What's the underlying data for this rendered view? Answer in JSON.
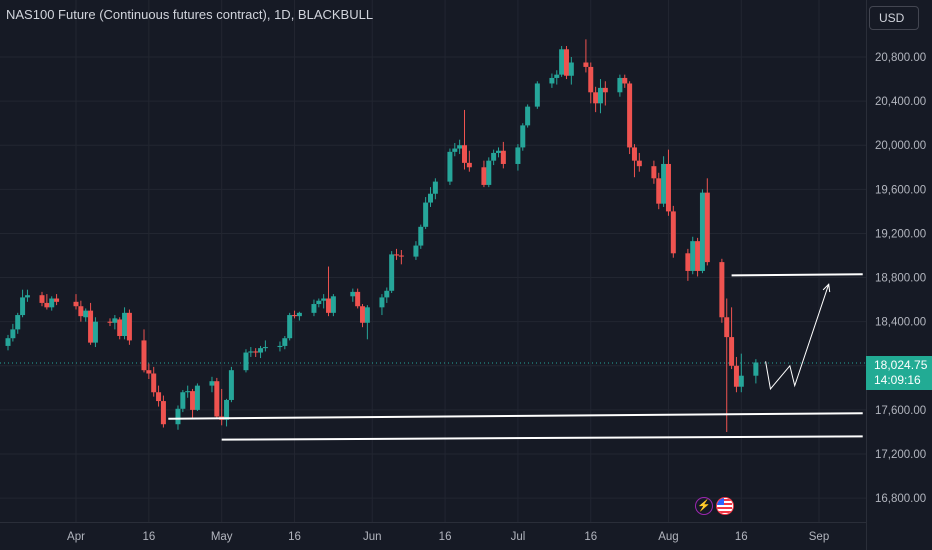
{
  "header": {
    "title": "NAS100 Future (Continuous futures contract), 1D, BLACKBULL",
    "currency": "USD"
  },
  "price_tag": {
    "price": "18,024.75",
    "countdown": "14:09:16"
  },
  "events": [
    {
      "icon": "lightning-icon",
      "glyph": "⚡",
      "color": "#9c27b0"
    },
    {
      "icon": "us-flag-icon",
      "glyph": "",
      "color": "#f23645"
    }
  ],
  "colors": {
    "up": "#26a69a",
    "down": "#ef5350",
    "background": "#161a25",
    "grid": "#222631",
    "axis_text": "#b2b5be",
    "lines": "#ffffff"
  },
  "chart_data": {
    "type": "candlestick",
    "ylim": [
      16650,
      21100
    ],
    "yticks": [
      16800,
      17200,
      17600,
      18000,
      18400,
      18800,
      19200,
      19600,
      20000,
      20400,
      20800
    ],
    "ytick_labels": [
      "16,800.00",
      "17,200.00",
      "17,600.00",
      "18,000.00",
      "18,400.00",
      "18,800.00",
      "19,200.00",
      "19,600.00",
      "20,000.00",
      "20,400.00",
      "20,800.00"
    ],
    "xtick_labels": [
      {
        "date": "2024-04-01",
        "label": "Apr"
      },
      {
        "date": "2024-04-16",
        "label": "16"
      },
      {
        "date": "2024-05-01",
        "label": "May"
      },
      {
        "date": "2024-05-16",
        "label": "16"
      },
      {
        "date": "2024-06-01",
        "label": "Jun"
      },
      {
        "date": "2024-06-16",
        "label": "16"
      },
      {
        "date": "2024-07-01",
        "label": "Jul"
      },
      {
        "date": "2024-07-16",
        "label": "16"
      },
      {
        "date": "2024-08-01",
        "label": "Aug"
      },
      {
        "date": "2024-08-16",
        "label": "16"
      },
      {
        "date": "2024-09-01",
        "label": "Sep"
      }
    ],
    "last_price": 18024.75,
    "candles": [
      [
        "2024-03-13",
        18370,
        18440,
        18280,
        18300
      ],
      [
        "2024-03-14",
        18300,
        18340,
        18040,
        18070
      ],
      [
        "2024-03-15",
        18080,
        18230,
        18040,
        18180
      ],
      [
        "2024-03-18",
        18180,
        18280,
        18140,
        18250
      ],
      [
        "2024-03-19",
        18250,
        18380,
        18220,
        18330
      ],
      [
        "2024-03-20",
        18330,
        18480,
        18290,
        18460
      ],
      [
        "2024-03-21",
        18460,
        18690,
        18440,
        18620
      ],
      [
        "2024-03-22",
        18620,
        18690,
        18580,
        18640
      ],
      [
        "2024-03-25",
        18640,
        18670,
        18540,
        18570
      ],
      [
        "2024-03-26",
        18570,
        18650,
        18510,
        18530
      ],
      [
        "2024-03-27",
        18530,
        18630,
        18500,
        18610
      ],
      [
        "2024-03-28",
        18610,
        18650,
        18550,
        18580
      ],
      [
        "2024-04-01",
        18580,
        18650,
        18510,
        18540
      ],
      [
        "2024-04-02",
        18540,
        18590,
        18400,
        18450
      ],
      [
        "2024-04-03",
        18440,
        18520,
        18400,
        18500
      ],
      [
        "2024-04-04",
        18500,
        18570,
        18190,
        18210
      ],
      [
        "2024-04-05",
        18210,
        18440,
        18170,
        18400
      ],
      [
        "2024-04-08",
        18400,
        18430,
        18360,
        18390
      ],
      [
        "2024-04-09",
        18390,
        18460,
        18330,
        18430
      ],
      [
        "2024-04-10",
        18420,
        18440,
        18240,
        18270
      ],
      [
        "2024-04-11",
        18270,
        18530,
        18240,
        18480
      ],
      [
        "2024-04-12",
        18480,
        18510,
        18190,
        18230
      ],
      [
        "2024-04-15",
        18230,
        18330,
        17940,
        17960
      ],
      [
        "2024-04-16",
        17960,
        18020,
        17880,
        17930
      ],
      [
        "2024-04-17",
        17930,
        17990,
        17720,
        17760
      ],
      [
        "2024-04-18",
        17760,
        17820,
        17630,
        17680
      ],
      [
        "2024-04-19",
        17680,
        17730,
        17440,
        17470
      ],
      [
        "2024-04-22",
        17470,
        17640,
        17420,
        17610
      ],
      [
        "2024-04-23",
        17610,
        17780,
        17580,
        17760
      ],
      [
        "2024-04-24",
        17760,
        17820,
        17710,
        17770
      ],
      [
        "2024-04-25",
        17770,
        17790,
        17520,
        17600
      ],
      [
        "2024-04-26",
        17600,
        17840,
        17590,
        17820
      ],
      [
        "2024-04-29",
        17820,
        17900,
        17760,
        17860
      ],
      [
        "2024-04-30",
        17860,
        17890,
        17520,
        17540
      ],
      [
        "2024-05-01",
        17540,
        17790,
        17460,
        17510
      ],
      [
        "2024-05-02",
        17510,
        17700,
        17450,
        17690
      ],
      [
        "2024-05-03",
        17690,
        17990,
        17670,
        17960
      ],
      [
        "2024-05-06",
        17960,
        18150,
        17940,
        18120
      ],
      [
        "2024-05-07",
        18120,
        18170,
        18080,
        18130
      ],
      [
        "2024-05-08",
        18130,
        18160,
        18080,
        18120
      ],
      [
        "2024-05-09",
        18120,
        18180,
        18070,
        18160
      ],
      [
        "2024-05-10",
        18160,
        18230,
        18130,
        18170
      ],
      [
        "2024-05-13",
        18170,
        18220,
        18130,
        18180
      ],
      [
        "2024-05-14",
        18180,
        18270,
        18150,
        18250
      ],
      [
        "2024-05-15",
        18250,
        18480,
        18230,
        18460
      ],
      [
        "2024-05-16",
        18460,
        18500,
        18430,
        18450
      ],
      [
        "2024-05-17",
        18450,
        18490,
        18410,
        18480
      ],
      [
        "2024-05-20",
        18480,
        18600,
        18450,
        18560
      ],
      [
        "2024-05-21",
        18560,
        18610,
        18530,
        18590
      ],
      [
        "2024-05-22",
        18590,
        18650,
        18520,
        18610
      ],
      [
        "2024-05-23",
        18610,
        18900,
        18450,
        18480
      ],
      [
        "2024-05-24",
        18480,
        18650,
        18450,
        18630
      ],
      [
        "2024-05-28",
        18630,
        18700,
        18580,
        18670
      ],
      [
        "2024-05-29",
        18670,
        18700,
        18520,
        18540
      ],
      [
        "2024-05-30",
        18540,
        18560,
        18350,
        18390
      ],
      [
        "2024-05-31",
        18390,
        18550,
        18240,
        18530
      ],
      [
        "2024-06-03",
        18530,
        18650,
        18460,
        18620
      ],
      [
        "2024-06-04",
        18620,
        18710,
        18570,
        18680
      ],
      [
        "2024-06-05",
        18680,
        19040,
        18660,
        19010
      ],
      [
        "2024-06-06",
        19010,
        19060,
        18960,
        19000
      ],
      [
        "2024-06-07",
        19000,
        19050,
        18920,
        18990
      ],
      [
        "2024-06-10",
        18990,
        19130,
        18960,
        19090
      ],
      [
        "2024-06-11",
        19090,
        19280,
        19060,
        19260
      ],
      [
        "2024-06-12",
        19260,
        19530,
        19240,
        19480
      ],
      [
        "2024-06-13",
        19480,
        19620,
        19440,
        19560
      ],
      [
        "2024-06-14",
        19560,
        19700,
        19510,
        19670
      ],
      [
        "2024-06-17",
        19670,
        19970,
        19640,
        19940
      ],
      [
        "2024-06-18",
        19940,
        20020,
        19900,
        19970
      ],
      [
        "2024-06-19",
        19970,
        20050,
        19920,
        20000
      ],
      [
        "2024-06-20",
        20000,
        20320,
        19780,
        19840
      ],
      [
        "2024-06-21",
        19840,
        19950,
        19760,
        19800
      ],
      [
        "2024-06-24",
        19800,
        19860,
        19620,
        19640
      ],
      [
        "2024-06-25",
        19640,
        19890,
        19620,
        19860
      ],
      [
        "2024-06-26",
        19860,
        19960,
        19820,
        19930
      ],
      [
        "2024-06-27",
        19930,
        19980,
        19890,
        19950
      ],
      [
        "2024-06-28",
        19950,
        20030,
        19790,
        19830
      ],
      [
        "2024-07-01",
        19830,
        20010,
        19770,
        19980
      ],
      [
        "2024-07-02",
        19980,
        20200,
        19950,
        20180
      ],
      [
        "2024-07-03",
        20180,
        20370,
        20160,
        20350
      ],
      [
        "2024-07-05",
        20350,
        20580,
        20330,
        20560
      ],
      [
        "2024-07-08",
        20560,
        20650,
        20520,
        20610
      ],
      [
        "2024-07-09",
        20610,
        20680,
        20550,
        20640
      ],
      [
        "2024-07-10",
        20640,
        20900,
        20620,
        20870
      ],
      [
        "2024-07-11",
        20870,
        20900,
        20600,
        20630
      ],
      [
        "2024-07-12",
        20630,
        20800,
        20550,
        20750
      ],
      [
        "2024-07-15",
        20750,
        20960,
        20660,
        20710
      ],
      [
        "2024-07-16",
        20710,
        20750,
        20380,
        20480
      ],
      [
        "2024-07-17",
        20480,
        20530,
        20300,
        20380
      ],
      [
        "2024-07-18",
        20380,
        20600,
        20290,
        20520
      ],
      [
        "2024-07-19",
        20520,
        20580,
        20360,
        20480
      ],
      [
        "2024-07-22",
        20480,
        20640,
        20440,
        20610
      ],
      [
        "2024-07-23",
        20610,
        20640,
        20520,
        20560
      ],
      [
        "2024-07-24",
        20560,
        20580,
        19920,
        19980
      ],
      [
        "2024-07-25",
        19980,
        20010,
        19710,
        19860
      ],
      [
        "2024-07-26",
        19860,
        19930,
        19760,
        19810
      ],
      [
        "2024-07-29",
        19810,
        19860,
        19650,
        19700
      ],
      [
        "2024-07-30",
        19700,
        19750,
        19420,
        19470
      ],
      [
        "2024-07-31",
        19470,
        19900,
        19440,
        19830
      ],
      [
        "2024-08-01",
        19830,
        19960,
        19360,
        19400
      ],
      [
        "2024-08-02",
        19400,
        19450,
        18980,
        19020
      ],
      [
        "2024-08-05",
        19020,
        19060,
        18770,
        18860
      ],
      [
        "2024-08-06",
        18860,
        19170,
        18830,
        19130
      ],
      [
        "2024-08-07",
        19130,
        19160,
        18810,
        18860
      ],
      [
        "2024-08-08",
        18860,
        19600,
        18840,
        19570
      ],
      [
        "2024-08-09",
        19570,
        19700,
        18910,
        18940
      ],
      [
        "2024-08-12",
        18940,
        18970,
        18390,
        18440
      ],
      [
        "2024-08-13",
        18440,
        18610,
        17400,
        18260
      ],
      [
        "2024-08-14",
        18260,
        18530,
        17970,
        18000
      ],
      [
        "2024-08-15",
        18000,
        18080,
        17760,
        17810
      ],
      [
        "2024-08-16",
        17810,
        18110,
        17760,
        17910
      ],
      [
        "2024-08-19",
        17910,
        18060,
        17840,
        18030
      ]
    ],
    "lines": [
      {
        "name": "support-upper",
        "from": [
          "2024-04-20",
          17520
        ],
        "to": [
          "2024-09-10",
          17570
        ]
      },
      {
        "name": "support-lower",
        "from": [
          "2024-05-01",
          17330
        ],
        "to": [
          "2024-09-10",
          17360
        ]
      },
      {
        "name": "resistance",
        "from": [
          "2024-08-14",
          18820
        ],
        "to": [
          "2024-09-10",
          18830
        ]
      }
    ],
    "projection": [
      [
        "2024-08-21",
        18040
      ],
      [
        "2024-08-22",
        17790
      ],
      [
        "2024-08-26",
        18000
      ],
      [
        "2024-08-27",
        17820
      ],
      [
        "2024-09-03",
        18740
      ]
    ]
  }
}
